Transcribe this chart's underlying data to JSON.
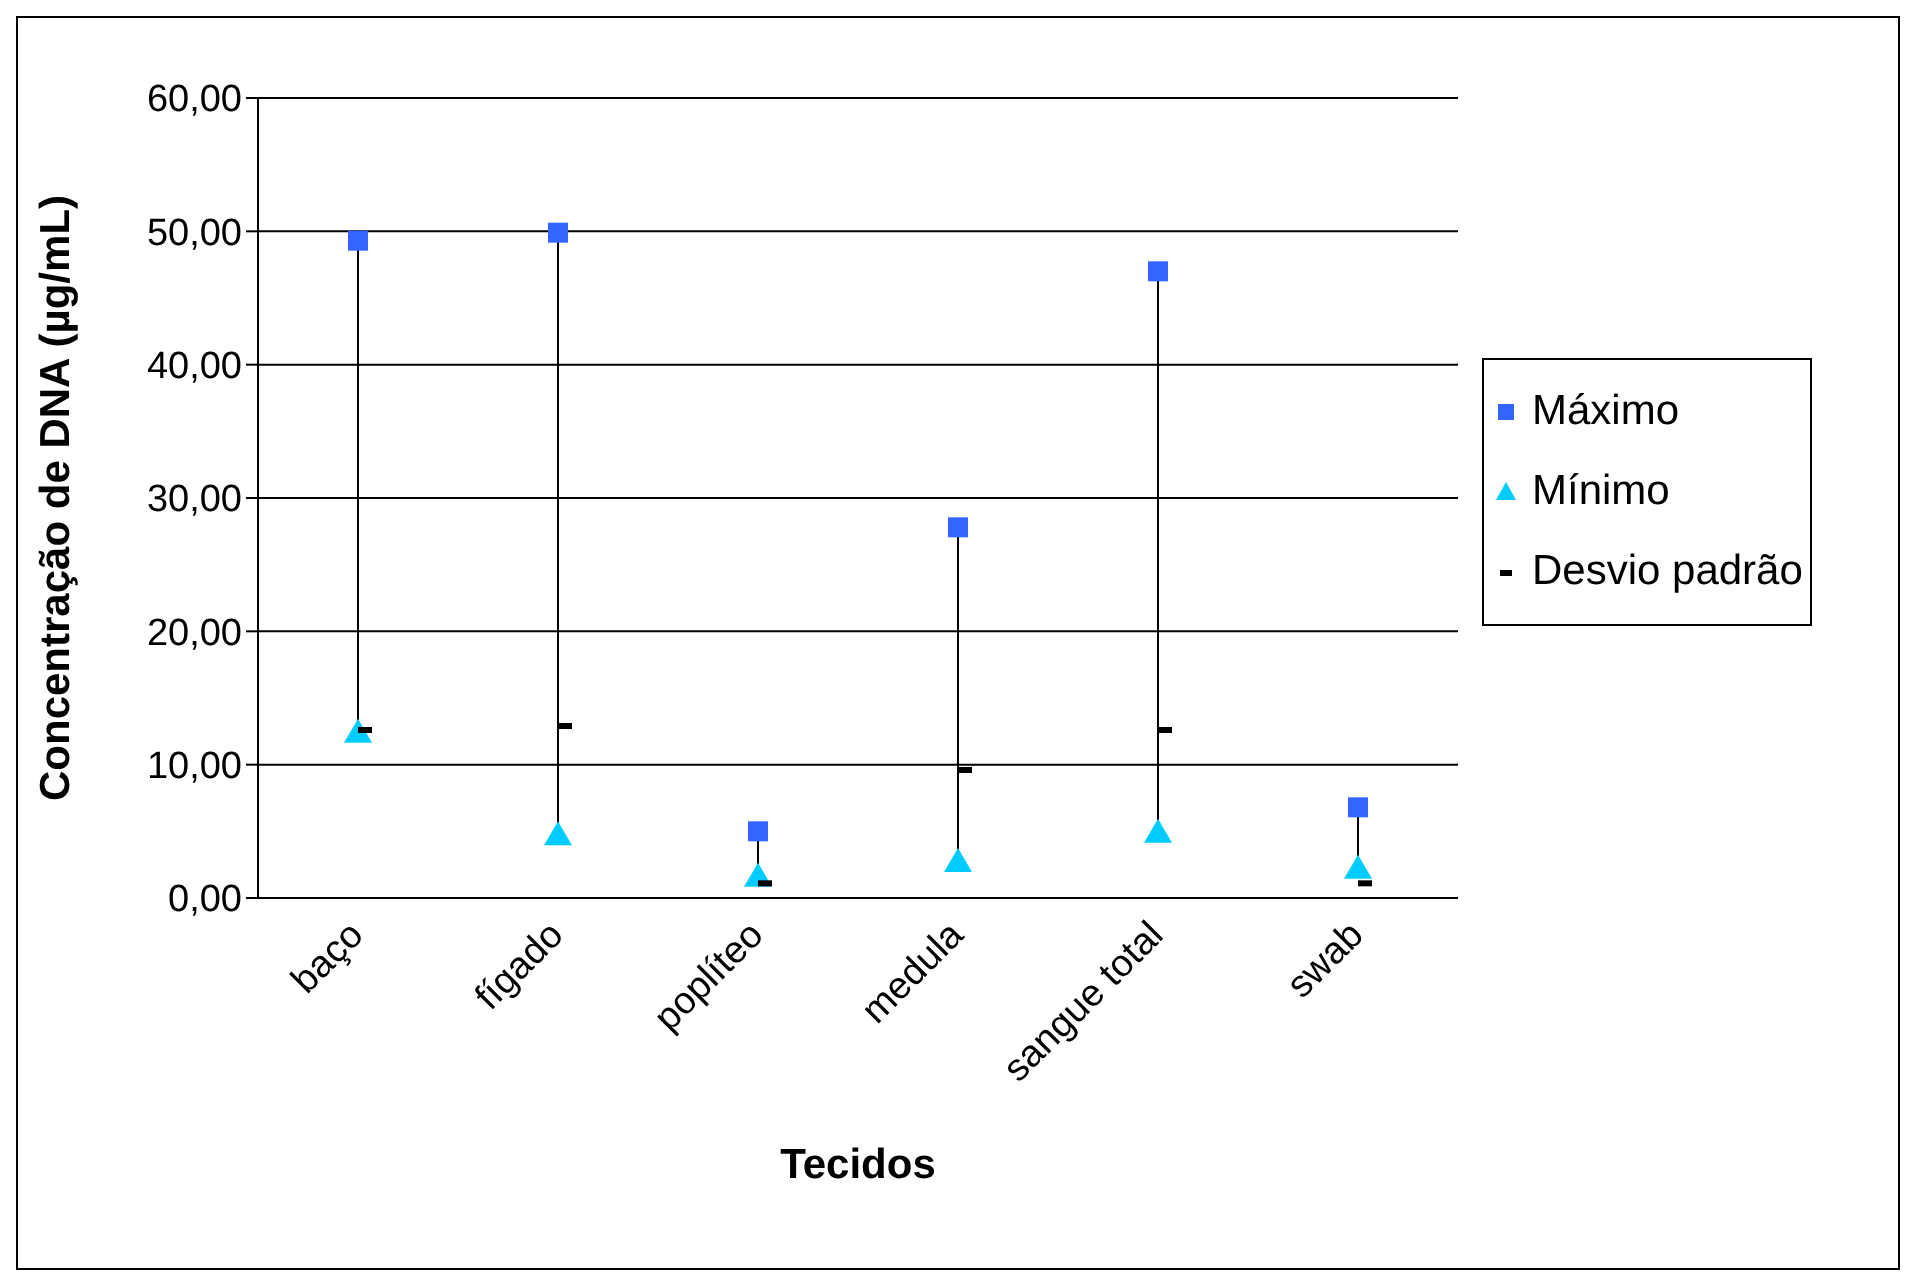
{
  "chart_data": {
    "type": "scatter",
    "xlabel": "Tecidos",
    "ylabel": "Concentração de DNA (µg/mL)",
    "categories": [
      "baço",
      "fígado",
      "poplíteo",
      "medula",
      "sangue total",
      "swab"
    ],
    "series": [
      {
        "name": "Máximo",
        "color": "#3366ff",
        "marker": "square",
        "values": [
          49.3,
          49.9,
          5.0,
          27.8,
          47.0,
          6.8
        ]
      },
      {
        "name": "Mínimo",
        "color": "#00ccff",
        "marker": "triangle",
        "values": [
          12.4,
          4.7,
          1.6,
          2.7,
          4.9,
          2.2
        ]
      },
      {
        "name": "Desvio padrão",
        "color": "#000000",
        "values": [
          12.6,
          12.9,
          1.1,
          9.6,
          12.6,
          1.1
        ]
      }
    ],
    "ylim": [
      0,
      60
    ],
    "yticks": [
      {
        "value": 0,
        "label": "0,00"
      },
      {
        "value": 10,
        "label": "10,00"
      },
      {
        "value": 20,
        "label": "20,00"
      },
      {
        "value": 30,
        "label": "30,00"
      },
      {
        "value": 40,
        "label": "40,00"
      },
      {
        "value": 50,
        "label": "50,00"
      },
      {
        "value": 60,
        "label": "60,00"
      }
    ],
    "grid": "y",
    "legend": "right"
  }
}
